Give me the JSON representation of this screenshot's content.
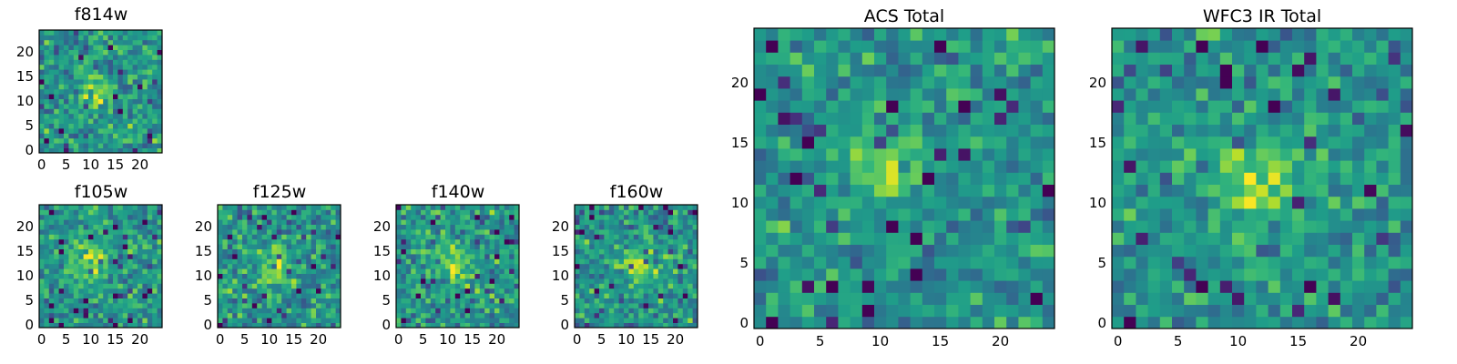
{
  "figure": {
    "layout": "grid of pixel-map panels: one small panel top-left, four small panels bottom row, two large panels on the right"
  },
  "colors": {
    "palette": "viridis",
    "axis": "#000000",
    "background": "#ffffff"
  },
  "chart_data": [
    {
      "type": "heatmap",
      "id": "f814w",
      "title": "f814w",
      "grid": [
        25,
        25
      ],
      "xticks": [
        0,
        5,
        10,
        15,
        20
      ],
      "yticks": [
        0,
        5,
        10,
        15,
        20
      ],
      "xlim": [
        0,
        25
      ],
      "ylim": [
        0,
        25
      ],
      "blob_center": [
        11,
        12
      ],
      "blob_sigma": 2.0,
      "blob_amp": 0.35,
      "noise": 0.2,
      "seed": 11
    },
    {
      "type": "heatmap",
      "id": "f105w",
      "title": "f105w",
      "grid": [
        25,
        25
      ],
      "xticks": [
        0,
        5,
        10,
        15,
        20
      ],
      "yticks": [
        0,
        5,
        10,
        15,
        20
      ],
      "xlim": [
        0,
        25
      ],
      "ylim": [
        0,
        25
      ],
      "blob_center": [
        10,
        13
      ],
      "blob_sigma": 3.0,
      "blob_amp": 0.3,
      "noise": 0.18,
      "seed": 23
    },
    {
      "type": "heatmap",
      "id": "f125w",
      "title": "f125w",
      "grid": [
        25,
        25
      ],
      "xticks": [
        0,
        5,
        10,
        15,
        20
      ],
      "yticks": [
        0,
        5,
        10,
        15,
        20
      ],
      "xlim": [
        0,
        25
      ],
      "ylim": [
        0,
        25
      ],
      "blob_center": [
        11,
        12
      ],
      "blob_sigma": 2.6,
      "blob_amp": 0.3,
      "noise": 0.2,
      "seed": 37
    },
    {
      "type": "heatmap",
      "id": "f140w",
      "title": "f140w",
      "grid": [
        25,
        25
      ],
      "xticks": [
        0,
        5,
        10,
        15,
        20
      ],
      "yticks": [
        0,
        5,
        10,
        15,
        20
      ],
      "xlim": [
        0,
        25
      ],
      "ylim": [
        0,
        25
      ],
      "blob_center": [
        11,
        12
      ],
      "blob_sigma": 2.6,
      "blob_amp": 0.3,
      "noise": 0.2,
      "seed": 41
    },
    {
      "type": "heatmap",
      "id": "f160w",
      "title": "f160w",
      "grid": [
        25,
        25
      ],
      "xticks": [
        0,
        5,
        10,
        15,
        20
      ],
      "yticks": [
        0,
        5,
        10,
        15,
        20
      ],
      "xlim": [
        0,
        25
      ],
      "ylim": [
        0,
        25
      ],
      "blob_center": [
        12,
        12
      ],
      "blob_sigma": 2.6,
      "blob_amp": 0.3,
      "noise": 0.2,
      "seed": 53
    },
    {
      "type": "heatmap",
      "id": "acs-total",
      "title": "ACS Total",
      "grid": [
        25,
        25
      ],
      "xticks": [
        0,
        5,
        10,
        15,
        20
      ],
      "yticks": [
        0,
        5,
        10,
        15,
        20
      ],
      "xlim": [
        0,
        25
      ],
      "ylim": [
        0,
        25
      ],
      "blob_center": [
        10,
        13
      ],
      "blob_sigma": 2.2,
      "blob_amp": 0.32,
      "noise": 0.17,
      "seed": 67
    },
    {
      "type": "heatmap",
      "id": "wfc3-ir-total",
      "title": "WFC3 IR Total",
      "grid": [
        25,
        25
      ],
      "xticks": [
        0,
        5,
        10,
        15,
        20
      ],
      "yticks": [
        0,
        5,
        10,
        15,
        20
      ],
      "xlim": [
        0,
        25
      ],
      "ylim": [
        0,
        25
      ],
      "blob_center": [
        12,
        12
      ],
      "blob_sigma": 2.4,
      "blob_amp": 0.3,
      "noise": 0.17,
      "seed": 79
    }
  ]
}
